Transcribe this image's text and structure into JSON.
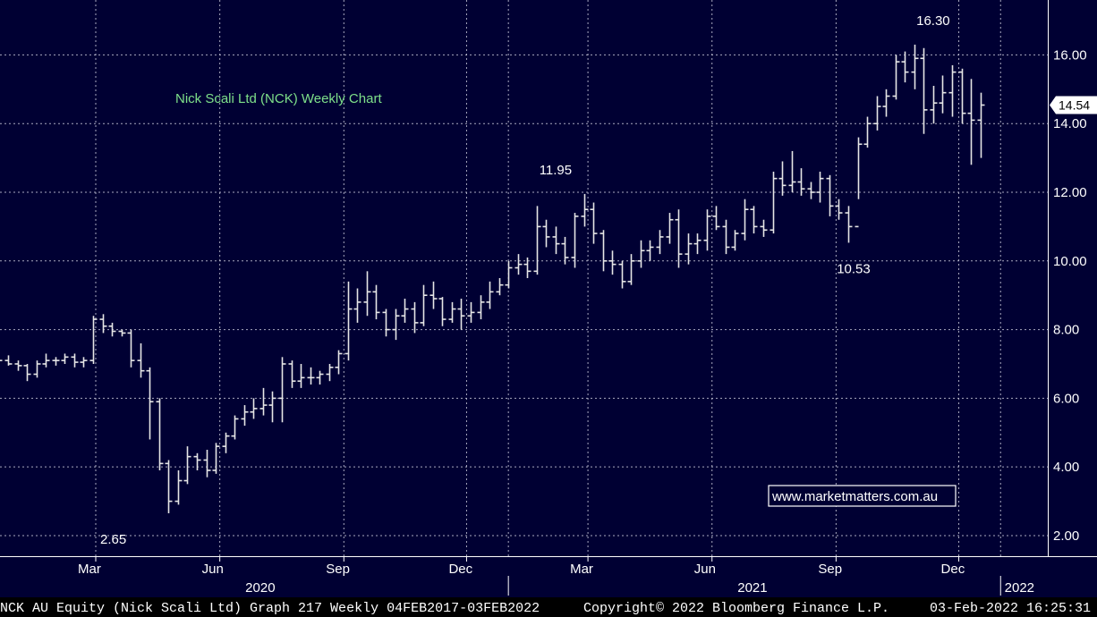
{
  "footer": {
    "left": "NCK AU Equity (Nick Scali Ltd) Graph 217  Weekly 04FEB2017-03FEB2022",
    "center": "Copyright© 2022 Bloomberg Finance L.P.",
    "right": "03-Feb-2022 16:25:31"
  },
  "watermark": "www.marketmatters.com.au",
  "colors": {
    "background": "#000033",
    "grid": "#c8c8d8",
    "bars": "#e6e6e6",
    "title": "#7ee08a"
  },
  "chart_data": {
    "type": "bar",
    "style": "OHLC price bars",
    "title": "Nick Scali Ltd (NCK) Weekly Chart",
    "xlabel": "",
    "ylabel": "",
    "ylim": [
      1.4,
      17.6
    ],
    "yticks": [
      "2.00",
      "4.00",
      "6.00",
      "8.00",
      "10.00",
      "12.00",
      "14.00",
      "16.00"
    ],
    "ytick_values": [
      2,
      4,
      6,
      8,
      10,
      12,
      14,
      16
    ],
    "y_axis_side": "right",
    "grid": true,
    "xlim": [
      "2019-12-21",
      "2022-02-05"
    ],
    "month_ticks": [
      {
        "label": "Mar",
        "date": "2020-03-01"
      },
      {
        "label": "Jun",
        "date": "2020-06-01"
      },
      {
        "label": "Sep",
        "date": "2020-09-01"
      },
      {
        "label": "Dec",
        "date": "2020-12-01"
      },
      {
        "label": "Mar",
        "date": "2021-03-01"
      },
      {
        "label": "Jun",
        "date": "2021-06-01"
      },
      {
        "label": "Sep",
        "date": "2021-09-01"
      },
      {
        "label": "Dec",
        "date": "2021-12-01"
      }
    ],
    "year_ticks": [
      {
        "label": "2020",
        "date": "2020-07-01"
      },
      {
        "label": "2021",
        "date": "2021-07-01"
      },
      {
        "label": "2022",
        "date": "2022-01-15"
      }
    ],
    "year_separators": [
      "2021-01-01",
      "2022-01-01"
    ],
    "last_price": "14.54",
    "last_price_value": 14.54,
    "annotations": [
      {
        "text": "2.65",
        "date": "2020-03-14",
        "value": 2.65,
        "position": "below"
      },
      {
        "text": "11.95",
        "date": "2021-02-05",
        "value": 11.95,
        "position": "above"
      },
      {
        "text": "10.53",
        "date": "2021-09-14",
        "value": 10.53,
        "position": "below"
      },
      {
        "text": "16.30",
        "date": "2021-11-12",
        "value": 16.3,
        "position": "above"
      }
    ],
    "series": [
      {
        "start_date": "2019-12-20",
        "interval": "weekly",
        "bars": [
          [
            7.1,
            7.2,
            6.9,
            7.1
          ],
          [
            7.1,
            7.25,
            6.95,
            7.0
          ],
          [
            7.0,
            7.1,
            6.8,
            6.95
          ],
          [
            6.95,
            7.0,
            6.5,
            6.7
          ],
          [
            6.7,
            7.1,
            6.6,
            7.0
          ],
          [
            7.0,
            7.3,
            6.9,
            7.1
          ],
          [
            7.1,
            7.2,
            6.95,
            7.1
          ],
          [
            7.1,
            7.3,
            7.0,
            7.2
          ],
          [
            7.2,
            7.3,
            6.9,
            7.05
          ],
          [
            7.05,
            7.2,
            6.9,
            7.1
          ],
          [
            7.1,
            8.4,
            7.0,
            8.3
          ],
          [
            8.3,
            8.45,
            7.9,
            8.1
          ],
          [
            8.1,
            8.2,
            7.8,
            7.95
          ],
          [
            7.95,
            8.0,
            7.8,
            7.9
          ],
          [
            7.9,
            8.0,
            6.9,
            7.1
          ],
          [
            7.1,
            7.6,
            6.6,
            6.8
          ],
          [
            6.8,
            6.9,
            4.8,
            5.9
          ],
          [
            5.9,
            6.0,
            3.9,
            4.1
          ],
          [
            4.1,
            4.2,
            2.65,
            3.0
          ],
          [
            3.0,
            3.9,
            2.9,
            3.6
          ],
          [
            3.6,
            4.6,
            3.5,
            4.3
          ],
          [
            4.3,
            4.4,
            3.9,
            4.2
          ],
          [
            4.2,
            4.5,
            3.7,
            3.9
          ],
          [
            3.9,
            4.7,
            3.8,
            4.6
          ],
          [
            4.6,
            5.0,
            4.4,
            4.9
          ],
          [
            4.9,
            5.5,
            4.8,
            5.4
          ],
          [
            5.4,
            5.8,
            5.2,
            5.6
          ],
          [
            5.6,
            6.0,
            5.4,
            5.7
          ],
          [
            5.7,
            6.3,
            5.5,
            5.8
          ],
          [
            5.8,
            6.2,
            5.3,
            6.0
          ],
          [
            6.0,
            7.2,
            5.3,
            7.0
          ],
          [
            7.0,
            7.1,
            6.3,
            6.5
          ],
          [
            6.5,
            7.0,
            6.3,
            6.6
          ],
          [
            6.6,
            6.9,
            6.4,
            6.6
          ],
          [
            6.6,
            6.8,
            6.4,
            6.7
          ],
          [
            6.7,
            7.0,
            6.5,
            6.9
          ],
          [
            6.9,
            7.4,
            6.7,
            7.3
          ],
          [
            7.3,
            9.4,
            7.1,
            8.6
          ],
          [
            8.6,
            9.2,
            8.2,
            8.8
          ],
          [
            8.8,
            9.7,
            8.4,
            9.1
          ],
          [
            9.1,
            9.3,
            8.3,
            8.5
          ],
          [
            8.5,
            8.6,
            7.8,
            8.0
          ],
          [
            8.0,
            8.6,
            7.7,
            8.4
          ],
          [
            8.4,
            8.9,
            8.2,
            8.6
          ],
          [
            8.6,
            8.8,
            7.9,
            8.2
          ],
          [
            8.2,
            9.3,
            8.1,
            9.0
          ],
          [
            9.0,
            9.4,
            8.6,
            8.9
          ],
          [
            8.9,
            8.95,
            8.1,
            8.3
          ],
          [
            8.3,
            8.8,
            8.2,
            8.6
          ],
          [
            8.6,
            8.9,
            8.0,
            8.4
          ],
          [
            8.4,
            8.8,
            8.2,
            8.5
          ],
          [
            8.5,
            9.0,
            8.3,
            8.8
          ],
          [
            8.8,
            9.4,
            8.6,
            9.1
          ],
          [
            9.1,
            9.5,
            9.0,
            9.3
          ],
          [
            9.3,
            10.0,
            9.2,
            9.8
          ],
          [
            9.8,
            10.2,
            9.6,
            9.9
          ],
          [
            9.9,
            10.1,
            9.5,
            9.7
          ],
          [
            9.7,
            11.6,
            9.6,
            11.0
          ],
          [
            11.0,
            11.2,
            10.4,
            10.7
          ],
          [
            10.7,
            11.0,
            10.2,
            10.5
          ],
          [
            10.5,
            10.7,
            9.9,
            10.1
          ],
          [
            10.1,
            11.4,
            9.8,
            11.3
          ],
          [
            11.3,
            11.95,
            11.0,
            11.5
          ],
          [
            11.5,
            11.7,
            10.5,
            10.8
          ],
          [
            10.8,
            10.9,
            9.7,
            10.0
          ],
          [
            10.0,
            10.3,
            9.6,
            9.9
          ],
          [
            9.9,
            10.0,
            9.2,
            9.4
          ],
          [
            9.4,
            10.2,
            9.3,
            10.0
          ],
          [
            10.0,
            10.6,
            9.8,
            10.3
          ],
          [
            10.3,
            10.6,
            10.0,
            10.4
          ],
          [
            10.4,
            10.9,
            10.2,
            10.7
          ],
          [
            10.7,
            11.4,
            10.5,
            11.2
          ],
          [
            11.2,
            11.5,
            9.8,
            10.2
          ],
          [
            10.2,
            10.8,
            9.9,
            10.5
          ],
          [
            10.5,
            10.8,
            10.2,
            10.6
          ],
          [
            10.6,
            11.5,
            10.3,
            11.3
          ],
          [
            11.3,
            11.6,
            10.9,
            11.0
          ],
          [
            11.0,
            11.2,
            10.2,
            10.4
          ],
          [
            10.4,
            10.9,
            10.3,
            10.8
          ],
          [
            10.8,
            11.8,
            10.6,
            11.5
          ],
          [
            11.5,
            11.6,
            10.8,
            11.0
          ],
          [
            11.0,
            11.2,
            10.7,
            10.9
          ],
          [
            10.9,
            12.6,
            10.8,
            12.4
          ],
          [
            12.4,
            12.9,
            11.9,
            12.2
          ],
          [
            12.2,
            13.2,
            12.0,
            12.3
          ],
          [
            12.3,
            12.7,
            11.9,
            12.1
          ],
          [
            12.1,
            12.3,
            11.8,
            12.0
          ],
          [
            12.0,
            12.6,
            11.7,
            12.4
          ],
          [
            12.4,
            12.5,
            11.3,
            11.6
          ],
          [
            11.6,
            11.8,
            11.2,
            11.4
          ],
          [
            11.4,
            11.6,
            10.53,
            11.0
          ],
          [
            11.0,
            13.6,
            11.8,
            13.4
          ],
          [
            13.4,
            14.2,
            13.3,
            14.0
          ],
          [
            14.0,
            14.8,
            13.8,
            14.5
          ],
          [
            14.5,
            15.0,
            14.2,
            14.8
          ],
          [
            14.8,
            16.0,
            14.7,
            15.8
          ],
          [
            15.8,
            16.1,
            15.2,
            15.5
          ],
          [
            15.5,
            16.3,
            15.0,
            15.9
          ],
          [
            15.9,
            16.2,
            13.7,
            14.4
          ],
          [
            14.4,
            15.1,
            14.0,
            14.6
          ],
          [
            14.6,
            15.4,
            14.3,
            14.9
          ],
          [
            14.9,
            15.7,
            14.2,
            15.5
          ],
          [
            15.5,
            15.6,
            14.0,
            14.3
          ],
          [
            14.3,
            15.3,
            12.8,
            14.1
          ],
          [
            14.1,
            14.9,
            13.0,
            14.54
          ]
        ]
      }
    ]
  }
}
